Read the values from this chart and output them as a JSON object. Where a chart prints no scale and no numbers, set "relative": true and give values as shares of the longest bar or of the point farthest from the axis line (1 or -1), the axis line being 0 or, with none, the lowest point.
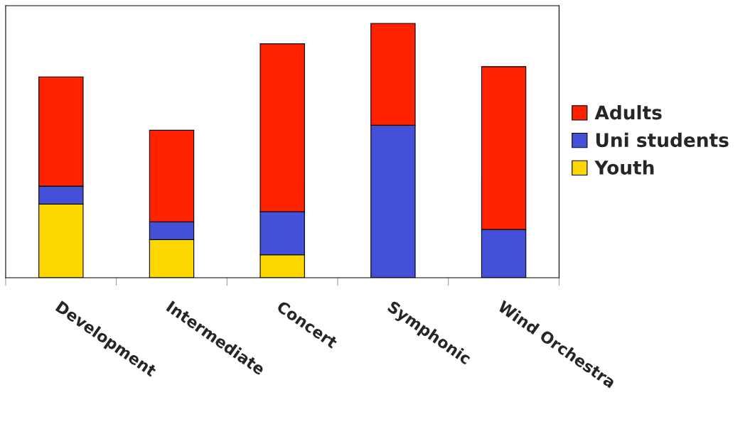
{
  "chart_data": {
    "type": "bar",
    "stacked": true,
    "relative": true,
    "legend": "right",
    "grid": false,
    "categories": [
      "Development",
      "Intermediate",
      "Concert",
      "Symphonic",
      "Wind Orchestra"
    ],
    "series": [
      {
        "name": "Youth",
        "color": "#ffd700",
        "values": [
          0.29,
          0.15,
          0.09,
          null,
          null
        ]
      },
      {
        "name": "Uni students",
        "color": "#4450d8",
        "values": [
          0.07,
          0.07,
          0.17,
          0.6,
          0.19
        ]
      },
      {
        "name": "Adults",
        "color": "#ff2200",
        "values": [
          0.43,
          0.36,
          0.66,
          0.4,
          0.64
        ]
      }
    ]
  }
}
